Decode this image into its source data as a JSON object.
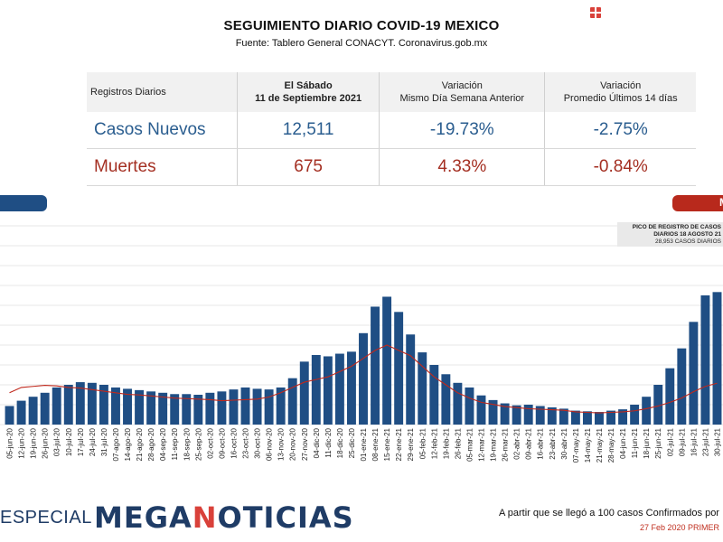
{
  "header": {
    "title": "SEGUIMIENTO DIARIO COVID-19 MEXICO",
    "subtitle": "Fuente: Tablero General CONACYT. Coronavirus.gob.mx"
  },
  "stats_table": {
    "col0": "Registros Diarios",
    "col1_line1": "El Sábado",
    "col1_line2": "11 de Septiembre 2021",
    "col2_line1": "Variación",
    "col2_line2": "Mismo Día Semana Anterior",
    "col3_line1": "Variación",
    "col3_line2": "Promedio Últimos 14 días",
    "rows": [
      {
        "label": "Casos Nuevos",
        "value": "12,511",
        "var_week": "-19.73%",
        "var_14d": "-2.75%"
      },
      {
        "label": "Muertes",
        "value": "675",
        "var_week": "4.33%",
        "var_14d": "-0.84%"
      }
    ]
  },
  "band_right_label": "M",
  "annotation": {
    "line1": "PICO DE REGISTRO DE CASOS",
    "line2": "DIARIOS 18 AGOSTO 21",
    "line3": "28,953 CASOS DIARIOS"
  },
  "footer": {
    "left": "ESPECIAL",
    "brand_a": "MEGA",
    "brand_b": "N",
    "brand_c": "OTICIAS",
    "note": "A partir que se llegó a 100 casos Confirmados por",
    "date": "27 Feb 2020 PRIMER"
  },
  "colors": {
    "cases_bar": "#1f4e84",
    "deaths_line": "#c0281c",
    "grid": "#cfcfcf"
  },
  "chart_data": {
    "type": "bar",
    "x": [
      "05-jun-20",
      "12-jun-20",
      "19-jun-20",
      "26-jun-20",
      "03-jul-20",
      "10-jul-20",
      "17-jul-20",
      "24-jul-20",
      "31-jul-20",
      "07-ago-20",
      "14-ago-20",
      "21-ago-20",
      "28-ago-20",
      "04-sep-20",
      "11-sep-20",
      "18-sep-20",
      "25-sep-20",
      "02-oct-20",
      "09-oct-20",
      "16-oct-20",
      "23-oct-20",
      "30-oct-20",
      "06-nov-20",
      "13-nov-20",
      "20-nov-20",
      "27-nov-20",
      "04-dic-20",
      "11-dic-20",
      "18-dic-20",
      "25-dic-20",
      "01-ene-21",
      "08-ene-21",
      "15-ene-21",
      "22-ene-21",
      "29-ene-21",
      "05-feb-21",
      "12-feb-21",
      "19-feb-21",
      "26-feb-21",
      "05-mar-21",
      "12-mar-21",
      "19-mar-21",
      "26-mar-21",
      "02-abr-21",
      "09-abr-21",
      "16-abr-21",
      "23-abr-21",
      "30-abr-21",
      "07-may-21",
      "14-may-21",
      "21-may-21",
      "28-may-21",
      "04-jun-21",
      "11-jun-21",
      "18-jun-21",
      "25-jun-21",
      "02-jul-21",
      "09-jul-21",
      "16-jul-21",
      "23-jul-21",
      "30-jul-21"
    ],
    "series": [
      {
        "values": [
          2800,
          3600,
          4200,
          4800,
          5600,
          6000,
          6400,
          6300,
          6000,
          5600,
          5400,
          5200,
          5000,
          4800,
          4600,
          4600,
          4500,
          4800,
          5000,
          5300,
          5600,
          5400,
          5300,
          5600,
          7000,
          9500,
          10500,
          10300,
          10700,
          11000,
          13800,
          17800,
          19300,
          17000,
          13600,
          10900,
          9000,
          7600,
          6300,
          5600,
          4400,
          3700,
          3200,
          2900,
          3000,
          2800,
          2600,
          2400,
          2100,
          2000,
          1900,
          2100,
          2300,
          3000,
          4200,
          6000,
          8500,
          11500,
          15500,
          19500,
          20000
        ]
      },
      {
        "values": [
          600,
          700,
          720,
          740,
          730,
          700,
          690,
          660,
          630,
          600,
          570,
          560,
          540,
          520,
          500,
          490,
          480,
          470,
          450,
          460,
          470,
          480,
          520,
          600,
          700,
          800,
          850,
          900,
          1000,
          1100,
          1250,
          1400,
          1500,
          1400,
          1300,
          1100,
          900,
          750,
          600,
          500,
          420,
          380,
          340,
          320,
          300,
          290,
          280,
          270,
          240,
          230,
          220,
          230,
          240,
          260,
          300,
          350,
          420,
          500,
          620,
          720,
          780
        ]
      }
    ],
    "ylim": [
      0,
      30000
    ]
  }
}
